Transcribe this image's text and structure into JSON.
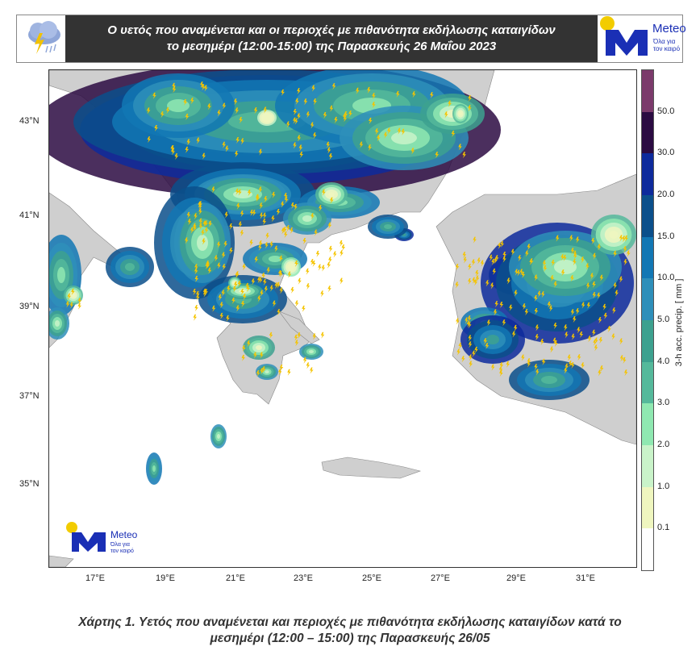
{
  "header": {
    "title_line1": "Ο υετός που αναμένεται και οι περιοχές με πιθανότητα εκδήλωσης καταιγίδων",
    "title_line2": "το μεσημέρι (12:00-15:00) της Παρασκευής 26 Μαΐου 2023",
    "logo_name": "Meteo",
    "logo_slogan_1": "Όλα για",
    "logo_slogan_2": "τον καιρό"
  },
  "map": {
    "lat_labels": [
      "43°N",
      "41°N",
      "39°N",
      "37°N",
      "35°N"
    ],
    "lon_labels": [
      "17°E",
      "19°E",
      "21°E",
      "23°E",
      "25°E",
      "27°E",
      "29°E",
      "31°E"
    ],
    "watermark": {
      "name": "Meteo",
      "slogan_1": "Όλα για",
      "slogan_2": "τον καιρό"
    }
  },
  "colorbar": {
    "label": "3-h acc. precip. [ mm ]",
    "ticks": [
      "50.0",
      "30.0",
      "20.0",
      "15.0",
      "10.0",
      "5.0",
      "4.0",
      "3.0",
      "2.0",
      "1.0",
      "0.1"
    ],
    "colors": [
      "#7b3a6b",
      "#2b0b42",
      "#0d2a9c",
      "#0b4f8b",
      "#1277b4",
      "#2e8fba",
      "#3da18f",
      "#55b99b",
      "#8fe8b1",
      "#c9f3c9",
      "#eff6bf",
      "#ffffff"
    ]
  },
  "caption": {
    "line1": "Χάρτης 1. Υετός που αναμένεται και περιοχές με πιθανότητα εκδήλωσης καταιγίδων κατά το",
    "line2": "μεσημέρι (12:00 – 15:00) της Παρασκευής 26/05"
  }
}
